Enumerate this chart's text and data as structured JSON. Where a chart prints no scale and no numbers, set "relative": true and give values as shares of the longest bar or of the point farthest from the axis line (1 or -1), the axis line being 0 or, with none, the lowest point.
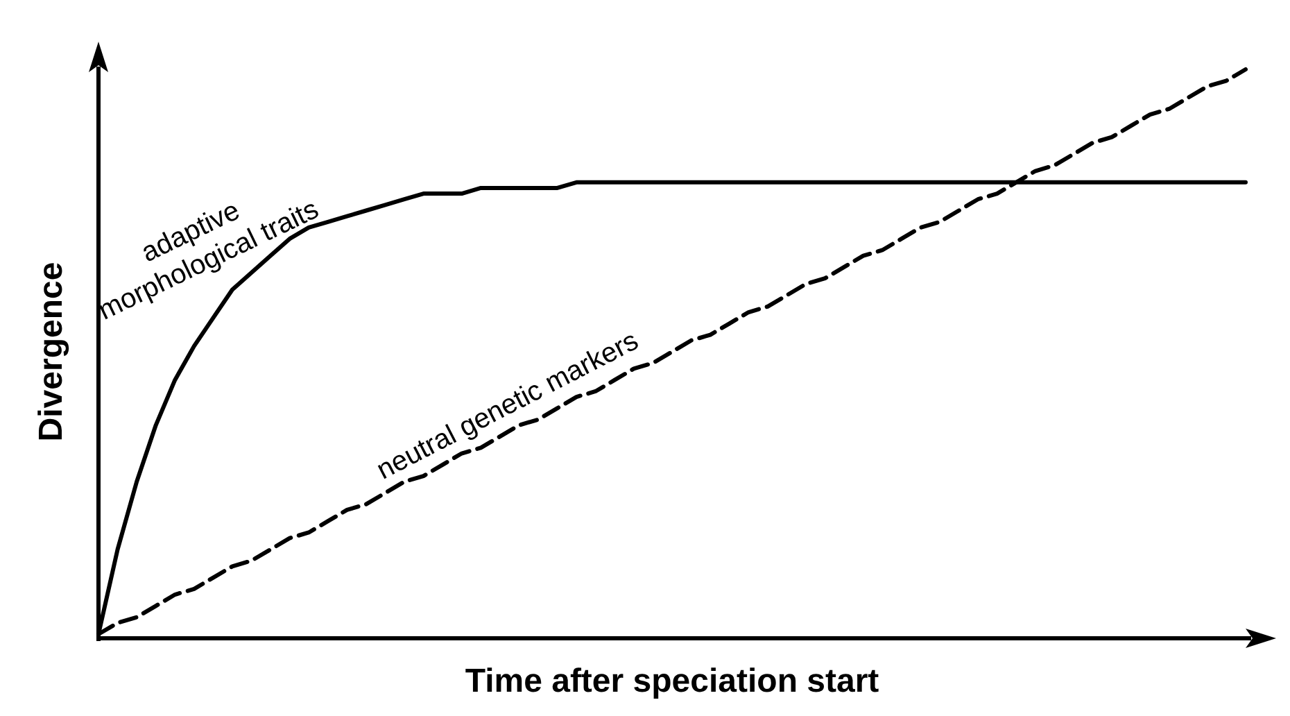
{
  "chart_data": {
    "type": "line",
    "relative": true,
    "xlabel": "Time after speciation start",
    "ylabel": "Divergence",
    "categories": [
      null,
      null,
      null,
      null,
      null,
      null,
      null,
      null,
      null,
      null,
      null,
      null,
      null,
      null,
      null,
      null,
      null,
      null,
      null,
      null,
      null,
      null,
      null,
      null,
      null,
      null,
      null,
      null,
      null,
      null,
      null,
      null,
      null,
      null,
      null,
      null,
      null,
      null,
      null,
      null,
      null,
      null,
      null,
      null,
      null,
      null,
      null,
      null,
      null,
      null,
      null,
      null,
      null,
      null,
      null,
      null,
      null,
      null,
      null,
      null,
      null
    ],
    "legend": false,
    "grid": false,
    "marker": "none",
    "series": [
      {
        "name": "adaptive morphological traits",
        "color": "#000000",
        "line_style": "solid",
        "values": [
          0,
          0.15,
          0.27,
          0.37,
          0.45,
          0.51,
          0.56,
          0.61,
          0.64,
          0.67,
          0.7,
          0.72,
          0.73,
          0.74,
          0.75,
          0.76,
          0.77,
          0.78,
          0.78,
          0.78,
          0.79,
          0.79,
          0.79,
          0.79,
          0.79,
          0.8,
          0.8,
          0.8,
          0.8,
          0.8,
          0.8,
          0.8,
          0.8,
          0.8,
          0.8,
          0.8,
          0.8,
          0.8,
          0.8,
          0.8,
          0.8,
          0.8,
          0.8,
          0.8,
          0.8,
          0.8,
          0.8,
          0.8,
          0.8,
          0.8,
          0.8,
          0.8,
          0.8,
          0.8,
          0.8,
          0.8,
          0.8,
          0.8,
          0.8,
          0.8,
          0.8
        ]
      },
      {
        "name": "neutral genetic markers",
        "color": "#000000",
        "line_style": "dashed",
        "values": [
          0,
          0.02,
          0.03,
          0.05,
          0.07,
          0.08,
          0.1,
          0.12,
          0.13,
          0.15,
          0.17,
          0.18,
          0.2,
          0.22,
          0.23,
          0.25,
          0.27,
          0.28,
          0.3,
          0.32,
          0.33,
          0.35,
          0.37,
          0.38,
          0.4,
          0.42,
          0.43,
          0.45,
          0.47,
          0.48,
          0.5,
          0.52,
          0.53,
          0.55,
          0.57,
          0.58,
          0.6,
          0.62,
          0.63,
          0.65,
          0.67,
          0.68,
          0.7,
          0.72,
          0.73,
          0.75,
          0.77,
          0.78,
          0.8,
          0.82,
          0.83,
          0.85,
          0.87,
          0.88,
          0.9,
          0.92,
          0.93,
          0.95,
          0.97,
          0.98,
          1
        ]
      }
    ]
  }
}
